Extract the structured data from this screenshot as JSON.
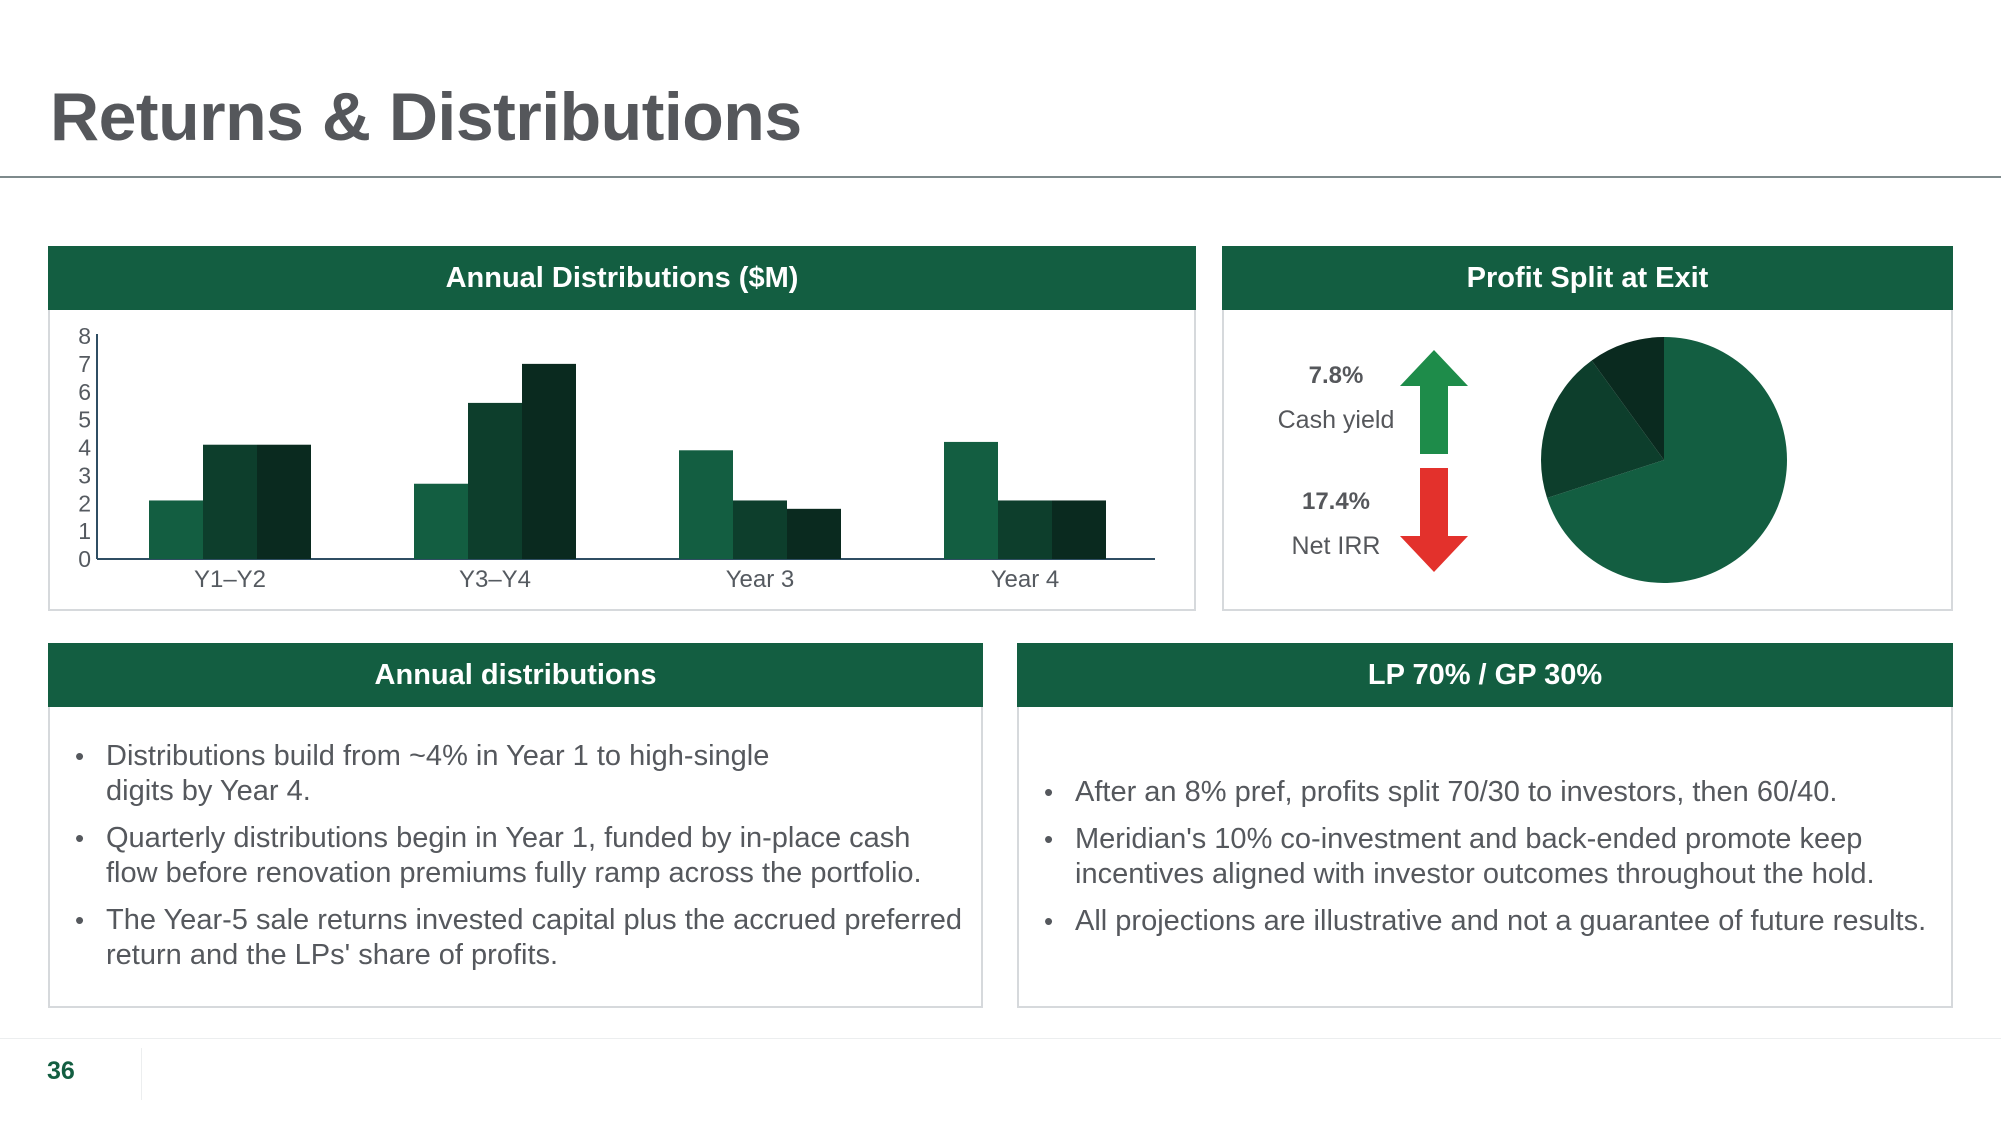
{
  "title": "Returns & Distributions",
  "colors": {
    "header_bg": "#135e41",
    "series_1": "#135e41",
    "series_2": "#0d3e2c",
    "series_3": "#0a2a1f",
    "up_arrow": "#1e8c4a",
    "down_arrow": "#e3312c"
  },
  "chart_panel": {
    "header": "Annual Distributions ($M)"
  },
  "chart_data": {
    "type": "bar",
    "categories": [
      "Y1–Y2",
      "Y3–Y4",
      "Year 3",
      "Year 4"
    ],
    "series": [
      {
        "values": [
          2.1,
          2.7,
          3.9,
          4.2
        ]
      },
      {
        "values": [
          4.1,
          5.6,
          2.1,
          2.1
        ]
      },
      {
        "values": [
          4.1,
          7.0,
          1.8,
          2.1
        ]
      }
    ],
    "ylim": [
      0,
      8
    ],
    "yticks": [
      0,
      1,
      2,
      3,
      4,
      5,
      6,
      7,
      8
    ],
    "xlabel": "",
    "ylabel": "",
    "grid": false,
    "legend": "none"
  },
  "split_panel": {
    "header": "Profit Split at Exit",
    "metric_1": {
      "value": "7.8%",
      "label": "Cash yield",
      "icon": "arrow-up-icon"
    },
    "metric_2": {
      "value": "17.4%",
      "label": "Net IRR",
      "icon": "arrow-down-icon"
    },
    "pie": {
      "type": "pie",
      "values": [
        70,
        20,
        10
      ]
    }
  },
  "distributions_panel": {
    "header": "Annual distributions",
    "bullets": [
      [
        "Distributions build from ~4% in Year 1 to high-single",
        "digits by Year 4."
      ],
      [
        "Quarterly distributions begin in Year 1, funded by in-place cash",
        "flow before renovation premiums fully ramp across the portfolio."
      ],
      [
        "The Year-5 sale returns invested capital plus the accrued preferred",
        "return and the LPs' share of profits."
      ]
    ]
  },
  "lpgp_panel": {
    "header": "LP 70% / GP 30%",
    "bullets": [
      [
        "After an 8% pref, profits split 70/30 to investors, then 60/40."
      ],
      [
        "Meridian's 10% co-investment and back-ended promote keep",
        "incentives aligned with investor outcomes throughout the hold."
      ],
      [
        "All projections are illustrative and not a guarantee of future results."
      ]
    ]
  },
  "bullet_glyph": "•",
  "page_number": "36"
}
